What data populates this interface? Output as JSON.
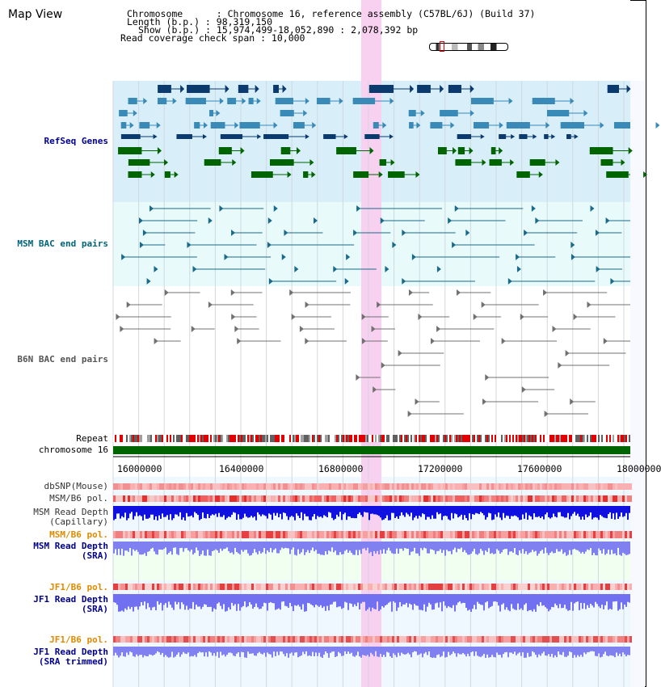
{
  "title": "Map View",
  "info": {
    "chromosome": "Chromosome      : Chromosome 16, reference assembly (C57BL/6J) (Build 37)",
    "length": "Length (b.p.) : 98,319,150",
    "show": "Show (b.p.) : 15,974,499-18,052,890 : 2,078,392 bp",
    "span": "Read coverage check span : 10,000"
  },
  "tracks": {
    "refseq": "RefSeq Genes",
    "msm_bac": "MSM BAC end pairs",
    "b6n_bac": "B6N BAC end pairs",
    "repeat": "Repeat",
    "chromosome": "chromosome 16",
    "dbsnp": "dbSNP(Mouse)",
    "msm_b6_pol_1": "MSM/B6 pol.",
    "msm_read_depth_cap_1": "MSM Read Depth",
    "msm_read_depth_cap_2": "(Capillary)",
    "msm_b6_pol_2": "MSM/B6 pol.",
    "msm_read_depth_sra_1": "MSM Read Depth",
    "msm_read_depth_sra_2": "(SRA)",
    "jf1_b6_pol_1": "JF1/B6 pol.",
    "jf1_read_depth_sra_1": "JF1 Read Depth",
    "jf1_read_depth_sra_2": "(SRA)",
    "jf1_b6_pol_2": "JF1/B6 pol.",
    "jf1_read_depth_trim_1": "JF1 Read Depth",
    "jf1_read_depth_trim_2": "(SRA trimmed)"
  },
  "axis_ticks": [
    "16000000",
    "16400000",
    "16800000",
    "17200000",
    "17600000",
    "18000000"
  ],
  "colors": {
    "refseq_dark": "#0a3a6e",
    "refseq_mid": "#3a8ab8",
    "refseq_green": "#006400",
    "msm_bac": "#1a6a8a",
    "b6n_bac": "#707070",
    "highlight": "#f8d0f0",
    "depth_blue": "#1010e0",
    "depth_light": "#7070f0",
    "pol_red": "#f08080"
  }
}
